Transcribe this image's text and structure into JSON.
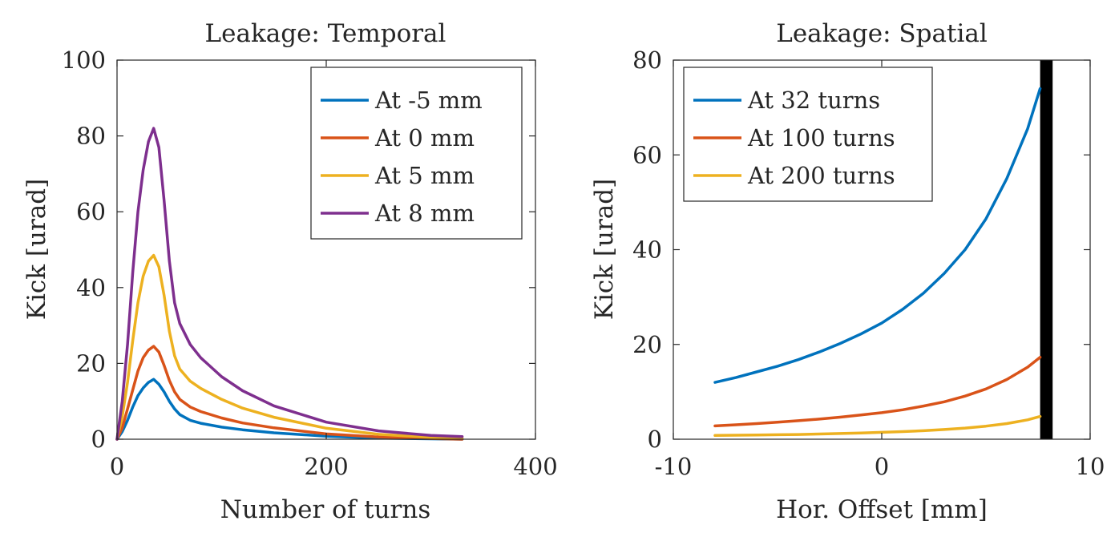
{
  "chart_data": [
    {
      "type": "line",
      "title": "Leakage: Temporal",
      "xlabel": "Number of turns",
      "ylabel": "Kick [urad]",
      "xlim": [
        0,
        400
      ],
      "ylim": [
        0,
        100
      ],
      "xticks": [
        0,
        200,
        400
      ],
      "xtick_labels": [
        "0",
        "200",
        "400"
      ],
      "yticks": [
        0,
        20,
        40,
        60,
        80,
        100
      ],
      "ytick_labels": [
        "0",
        "20",
        "40",
        "60",
        "80",
        "100"
      ],
      "grid": false,
      "legend_position": "top-right",
      "series": [
        {
          "name": "At -5 mm",
          "color": "#0072BD",
          "x": [
            0,
            5,
            10,
            15,
            20,
            25,
            30,
            35,
            40,
            45,
            50,
            55,
            60,
            70,
            80,
            100,
            120,
            150,
            200,
            250,
            300,
            330
          ],
          "y": [
            0,
            2,
            5,
            8.5,
            11.5,
            13.5,
            15,
            15.8,
            14.5,
            12.5,
            10,
            8,
            6.5,
            5,
            4.2,
            3.2,
            2.5,
            1.7,
            0.8,
            0.3,
            0.1,
            0
          ]
        },
        {
          "name": "At 0 mm",
          "color": "#D95319",
          "x": [
            0,
            5,
            10,
            15,
            20,
            25,
            30,
            35,
            40,
            45,
            50,
            55,
            60,
            70,
            80,
            100,
            120,
            150,
            200,
            250,
            300,
            330
          ],
          "y": [
            0,
            3,
            8,
            13,
            18,
            21.5,
            23.5,
            24.5,
            23,
            19.5,
            15.5,
            12.5,
            10.5,
            8.5,
            7.3,
            5.6,
            4.3,
            3,
            1.4,
            0.6,
            0.2,
            0
          ]
        },
        {
          "name": "At 5 mm",
          "color": "#EDB120",
          "x": [
            0,
            5,
            10,
            15,
            20,
            25,
            30,
            35,
            40,
            45,
            50,
            55,
            60,
            70,
            80,
            100,
            120,
            150,
            200,
            250,
            300,
            330
          ],
          "y": [
            0,
            6,
            15,
            26,
            36,
            43,
            47,
            48.5,
            45.5,
            38,
            28.5,
            22,
            18.5,
            15.3,
            13.4,
            10.5,
            8.2,
            5.8,
            2.9,
            1.3,
            0.5,
            0.3
          ]
        },
        {
          "name": "At 8 mm",
          "color": "#7E2F8E",
          "x": [
            0,
            5,
            10,
            15,
            20,
            25,
            30,
            35,
            40,
            45,
            50,
            55,
            60,
            70,
            80,
            100,
            120,
            150,
            200,
            250,
            300,
            330
          ],
          "y": [
            0,
            10,
            25,
            44,
            60,
            71,
            78.5,
            82,
            77,
            63,
            47,
            36,
            30.5,
            25,
            21.5,
            16.5,
            12.8,
            8.8,
            4.5,
            2.2,
            1,
            0.7
          ]
        }
      ]
    },
    {
      "type": "line",
      "title": "Leakage: Spatial",
      "xlabel": "Hor. Offset [mm]",
      "ylabel": "Kick [urad]",
      "xlim": [
        -10,
        10
      ],
      "ylim": [
        0,
        80
      ],
      "xticks": [
        -10,
        0,
        10
      ],
      "xtick_labels": [
        "-10",
        "0",
        "10"
      ],
      "yticks": [
        0,
        20,
        40,
        60,
        80
      ],
      "ytick_labels": [
        "0",
        "20",
        "40",
        "60",
        "80"
      ],
      "grid": false,
      "legend_position": "top-left",
      "aperture_limit_x": [
        7.6,
        8.2
      ],
      "series": [
        {
          "name": "At 32 turns",
          "color": "#0072BD",
          "x": [
            -8,
            -7,
            -6,
            -5,
            -4,
            -3,
            -2,
            -1,
            0,
            1,
            2,
            3,
            4,
            5,
            6,
            7,
            7.6
          ],
          "y": [
            12,
            13,
            14.2,
            15.4,
            16.8,
            18.4,
            20.2,
            22.2,
            24.5,
            27.4,
            30.8,
            35,
            40,
            46.5,
            55,
            65.5,
            74
          ]
        },
        {
          "name": "At 100 turns",
          "color": "#D95319",
          "x": [
            -8,
            -7,
            -6,
            -5,
            -4,
            -3,
            -2,
            -1,
            0,
            1,
            2,
            3,
            4,
            5,
            6,
            7,
            7.6
          ],
          "y": [
            2.8,
            3.05,
            3.3,
            3.6,
            3.9,
            4.25,
            4.65,
            5.1,
            5.6,
            6.2,
            7,
            7.9,
            9.1,
            10.6,
            12.6,
            15.2,
            17.3
          ]
        },
        {
          "name": "At 200 turns",
          "color": "#EDB120",
          "x": [
            -8,
            -7,
            -6,
            -5,
            -4,
            -3,
            -2,
            -1,
            0,
            1,
            2,
            3,
            4,
            5,
            6,
            7,
            7.6
          ],
          "y": [
            0.8,
            0.85,
            0.9,
            0.95,
            1.0,
            1.1,
            1.2,
            1.3,
            1.45,
            1.6,
            1.8,
            2.05,
            2.35,
            2.75,
            3.3,
            4.1,
            4.8
          ]
        }
      ]
    }
  ]
}
